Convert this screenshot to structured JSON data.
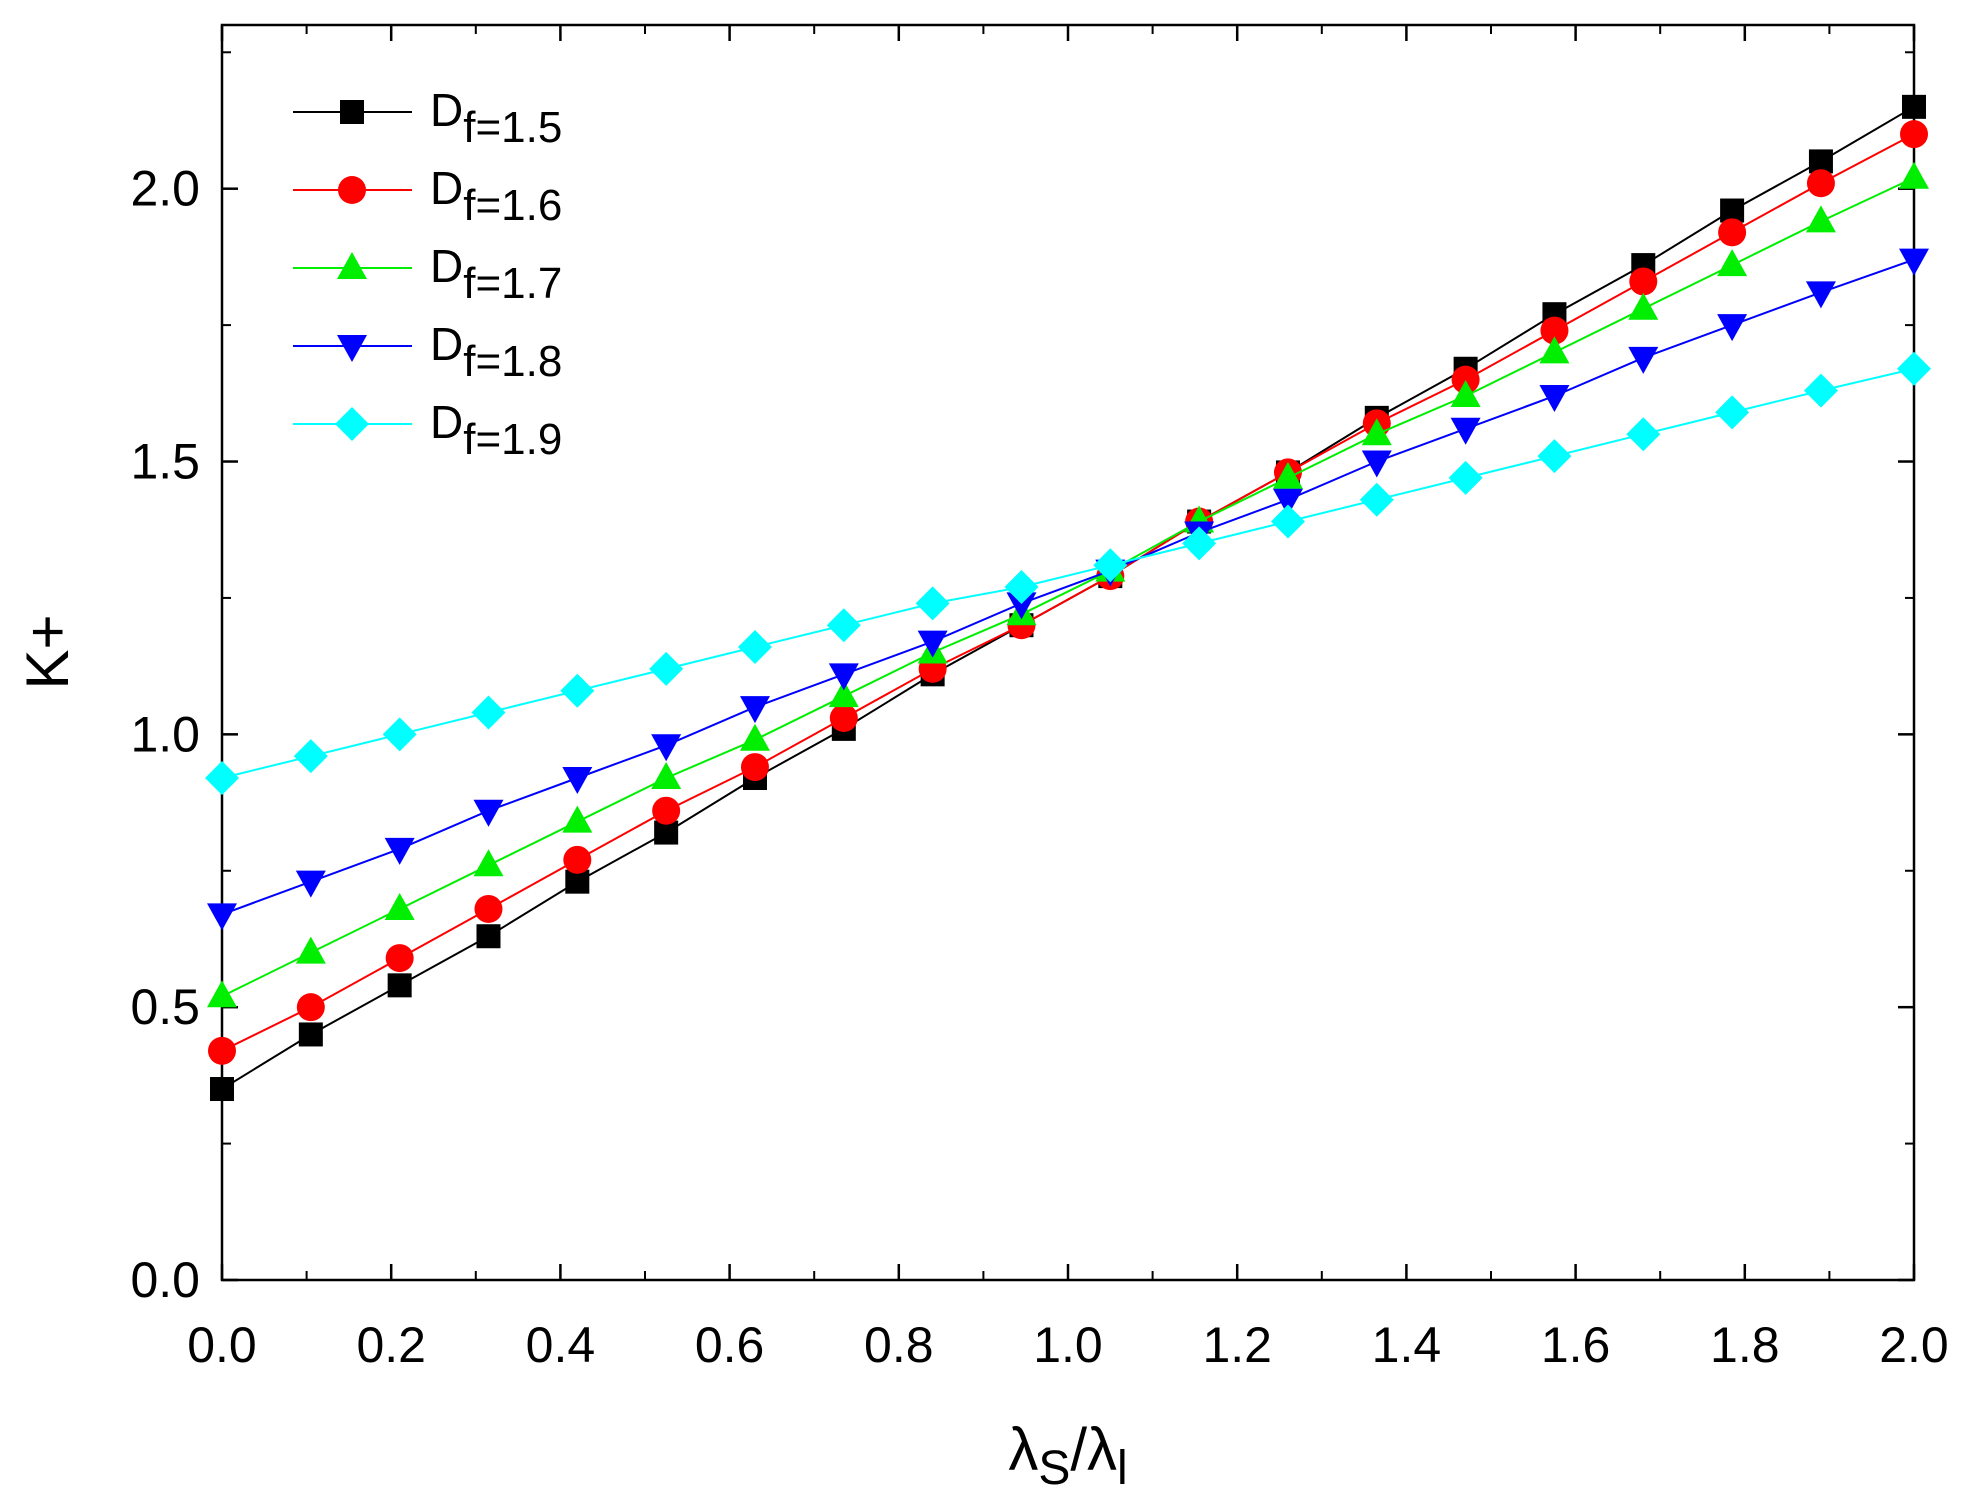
{
  "chart_data": {
    "type": "line",
    "xlabel": {
      "main": "λ",
      "sub1": "S",
      "slash": "/λ",
      "sub2": "l"
    },
    "ylabel": "K+",
    "xlim": [
      0.0,
      2.0
    ],
    "ylim": [
      0.0,
      2.3
    ],
    "x_ticks": [
      "0.0",
      "0.2",
      "0.4",
      "0.6",
      "0.8",
      "1.0",
      "1.2",
      "1.4",
      "1.6",
      "1.8",
      "2.0"
    ],
    "y_ticks": [
      "0.0",
      "0.5",
      "1.0",
      "1.5",
      "2.0"
    ],
    "x": [
      0.0,
      0.105,
      0.21,
      0.315,
      0.42,
      0.525,
      0.63,
      0.735,
      0.84,
      0.945,
      1.05,
      1.155,
      1.26,
      1.365,
      1.47,
      1.575,
      1.68,
      1.785,
      1.89,
      2.0
    ],
    "legend_position": "top-left",
    "series": [
      {
        "name": "D",
        "name_sub": "f=1.5",
        "color": "#000000",
        "marker": "square",
        "values": [
          0.35,
          0.45,
          0.54,
          0.63,
          0.73,
          0.82,
          0.92,
          1.01,
          1.11,
          1.2,
          1.29,
          1.39,
          1.48,
          1.58,
          1.67,
          1.77,
          1.86,
          1.96,
          2.05,
          2.15
        ]
      },
      {
        "name": "D",
        "name_sub": "f=1.6",
        "color": "#ff0000",
        "marker": "circle",
        "values": [
          0.42,
          0.5,
          0.59,
          0.68,
          0.77,
          0.86,
          0.94,
          1.03,
          1.12,
          1.2,
          1.29,
          1.39,
          1.48,
          1.57,
          1.65,
          1.74,
          1.83,
          1.92,
          2.01,
          2.1
        ]
      },
      {
        "name": "D",
        "name_sub": "f=1.7",
        "color": "#00ee00",
        "marker": "triangle-up",
        "values": [
          0.52,
          0.6,
          0.68,
          0.76,
          0.84,
          0.92,
          0.99,
          1.07,
          1.15,
          1.22,
          1.3,
          1.39,
          1.47,
          1.55,
          1.62,
          1.7,
          1.78,
          1.86,
          1.94,
          2.02
        ]
      },
      {
        "name": "D",
        "name_sub": "f=1.8",
        "color": "#0000ff",
        "marker": "triangle-down",
        "values": [
          0.67,
          0.73,
          0.79,
          0.86,
          0.92,
          0.98,
          1.05,
          1.11,
          1.17,
          1.24,
          1.3,
          1.37,
          1.43,
          1.5,
          1.56,
          1.62,
          1.69,
          1.75,
          1.81,
          1.87
        ]
      },
      {
        "name": "D",
        "name_sub": "f=1.9",
        "color": "#00ffff",
        "marker": "diamond",
        "values": [
          0.92,
          0.96,
          1.0,
          1.04,
          1.08,
          1.12,
          1.16,
          1.2,
          1.24,
          1.27,
          1.31,
          1.35,
          1.39,
          1.43,
          1.47,
          1.51,
          1.55,
          1.59,
          1.63,
          1.67
        ]
      }
    ]
  }
}
